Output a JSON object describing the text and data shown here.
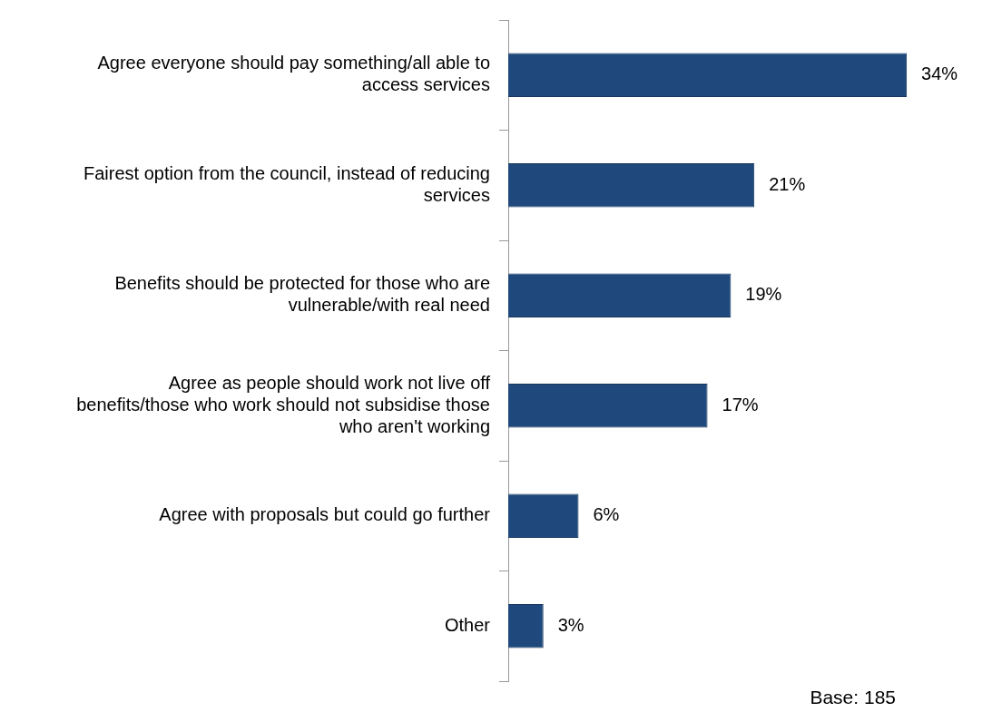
{
  "chart_data": {
    "type": "bar",
    "orientation": "horizontal",
    "categories": [
      "Agree everyone should pay something/all able to access services",
      "Fairest option from the council, instead of reducing services",
      "Benefits should be protected for those who are vulnerable/with real need",
      "Agree as people should work not live off benefits/those who work should not subsidise those who aren't working",
      "Agree with proposals but could go further",
      "Other"
    ],
    "values": [
      34,
      21,
      19,
      17,
      6,
      3
    ],
    "value_labels": [
      "34%",
      "21%",
      "19%",
      "17%",
      "6%",
      "3%"
    ],
    "color": "#1f497d",
    "legend": false,
    "annotations": [
      "Base: 185"
    ]
  }
}
